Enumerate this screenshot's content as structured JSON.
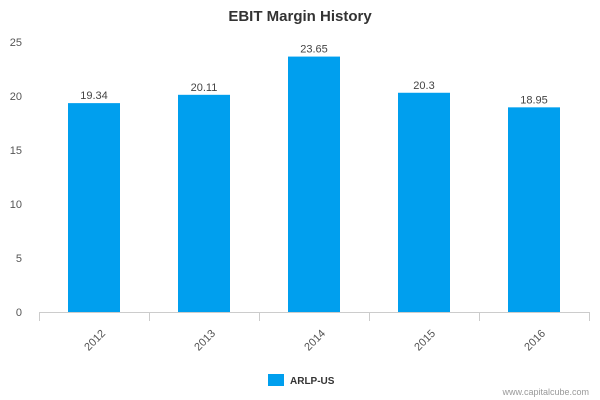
{
  "chart_data": {
    "type": "bar",
    "title": "EBIT Margin History",
    "categories": [
      "2012",
      "2013",
      "2014",
      "2015",
      "2016"
    ],
    "series": [
      {
        "name": "ARLP-US",
        "values": [
          19.34,
          20.11,
          23.65,
          20.3,
          18.95
        ],
        "color": "#009fee"
      }
    ],
    "data_labels": [
      "19.34",
      "20.11",
      "23.65",
      "20.3",
      "18.95"
    ],
    "ylim": [
      0,
      25
    ],
    "yticks": [
      0,
      5,
      10,
      15,
      20,
      25
    ],
    "grid": false,
    "legend_position": "bottom-center",
    "xlabel": "",
    "ylabel": ""
  },
  "credit": "www.capitalcube.com"
}
